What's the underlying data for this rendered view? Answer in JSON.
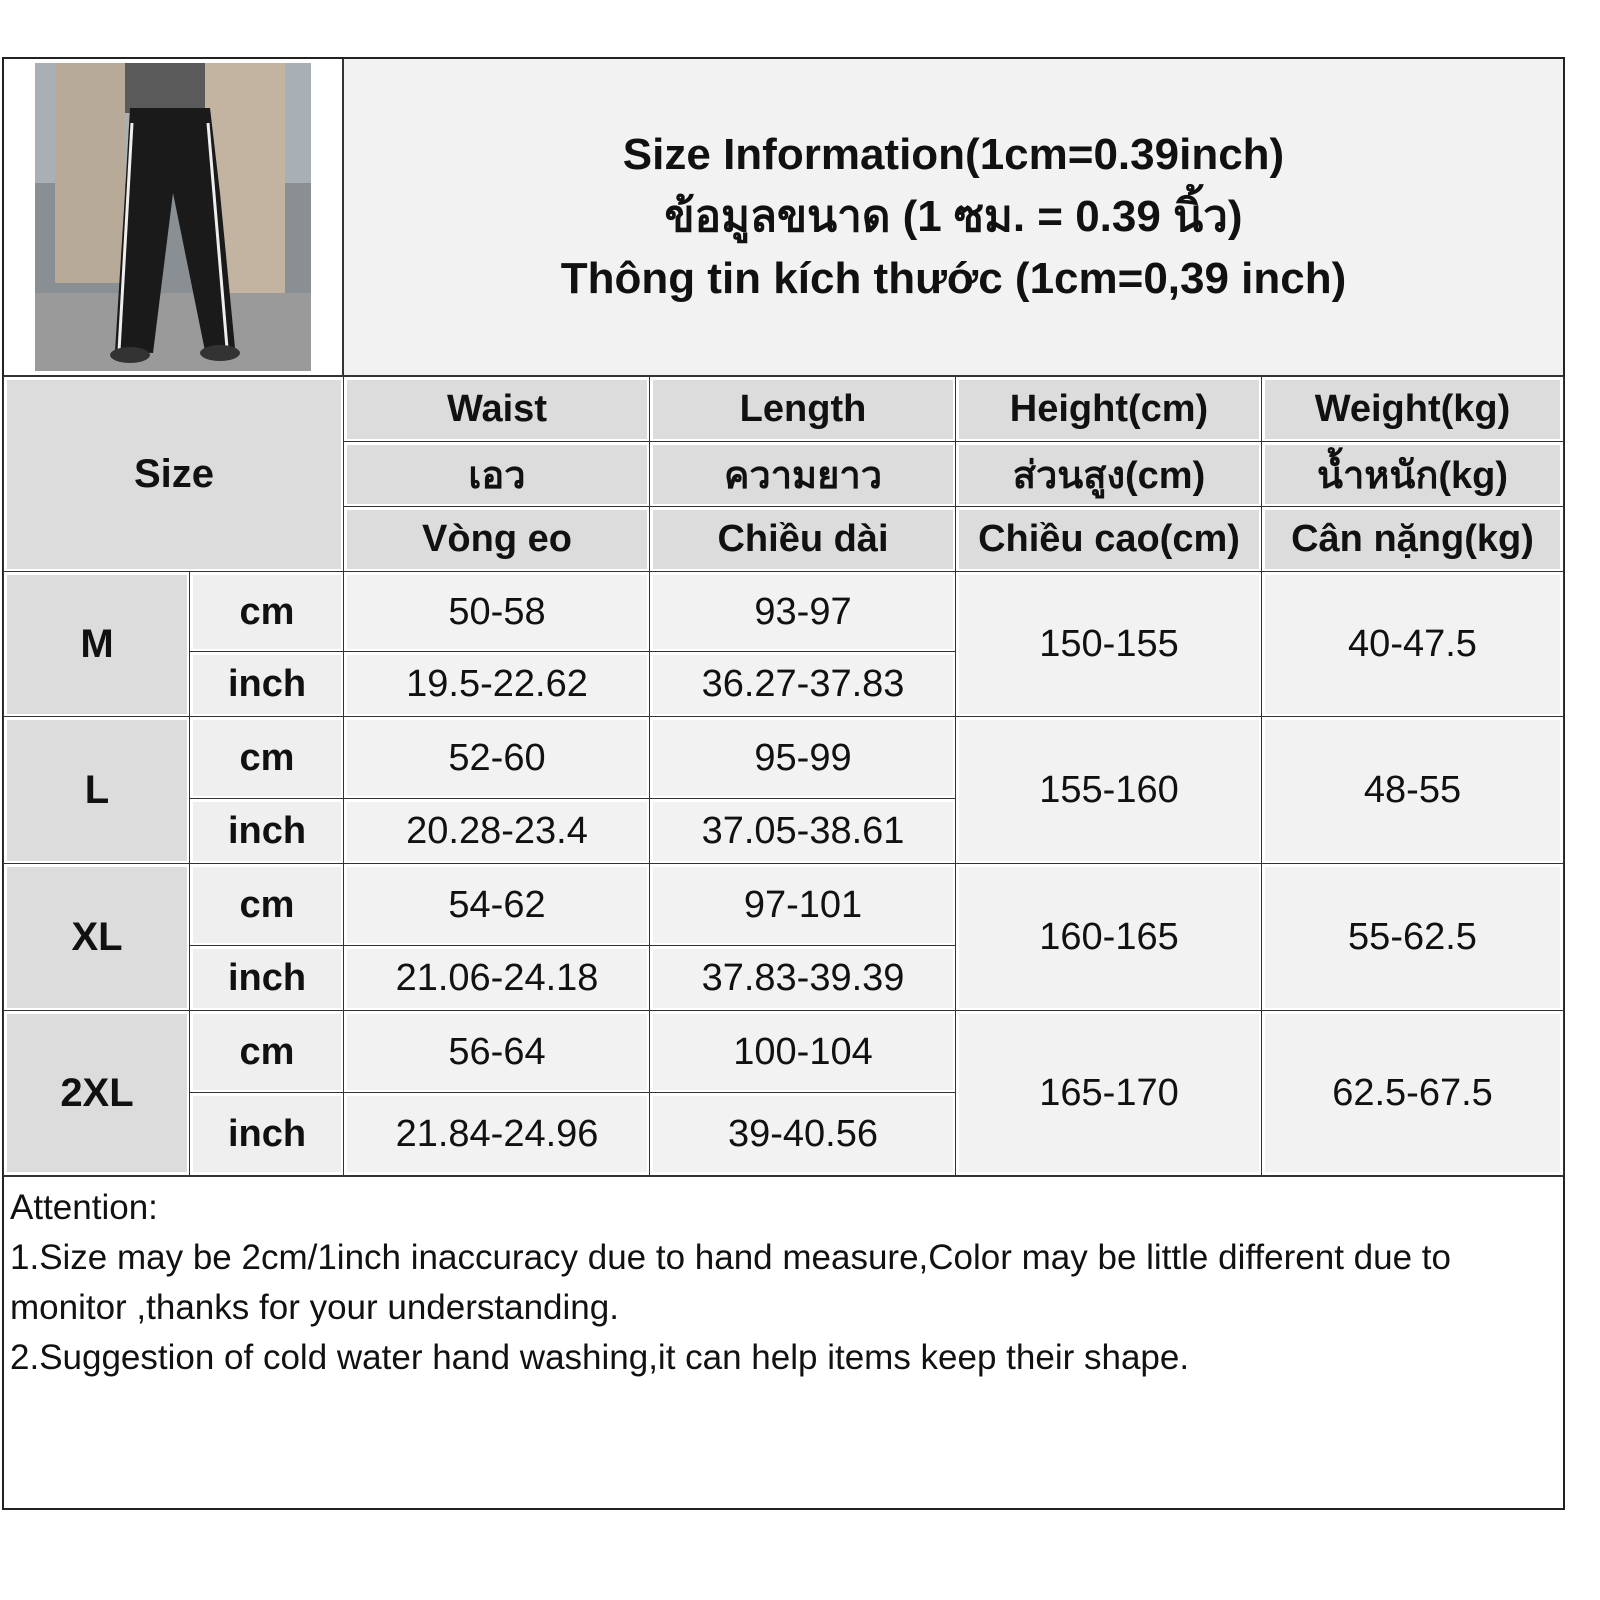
{
  "title": {
    "line1": "Size Information(1cm=0.39inch)",
    "line2": "ข้อมูลขนาด (1 ซม. = 0.39 นิ้ว)",
    "line3": "Thông tin kích thước (1cm=0,39 inch)"
  },
  "header": {
    "size_label": "Size",
    "columns": [
      {
        "en": "Waist",
        "th": "เอว",
        "vi": "Vòng eo"
      },
      {
        "en": "Length",
        "th": "ความยาว",
        "vi": "Chiều dài"
      },
      {
        "en": "Height(cm)",
        "th": "ส่วนสูง(cm)",
        "vi": "Chiều cao(cm)"
      },
      {
        "en": "Weight(kg)",
        "th": "น้ำหนัก(kg)",
        "vi": "Cân nặng(kg)"
      }
    ]
  },
  "units": {
    "cm": "cm",
    "inch": "inch"
  },
  "rows": [
    {
      "size": "M",
      "waist_cm": "50-58",
      "waist_inch": "19.5-22.62",
      "length_cm": "93-97",
      "length_inch": "36.27-37.83",
      "height": "150-155",
      "weight": "40-47.5"
    },
    {
      "size": "L",
      "waist_cm": "52-60",
      "waist_inch": "20.28-23.4",
      "length_cm": "95-99",
      "length_inch": "37.05-38.61",
      "height": "155-160",
      "weight": "48-55"
    },
    {
      "size": "XL",
      "waist_cm": "54-62",
      "waist_inch": "21.06-24.18",
      "length_cm": "97-101",
      "length_inch": "37.83-39.39",
      "height": "160-165",
      "weight": "55-62.5"
    },
    {
      "size": "2XL",
      "waist_cm": "56-64",
      "waist_inch": "21.84-24.96",
      "length_cm": "100-104",
      "length_inch": "39-40.56",
      "height": "165-170",
      "weight": "62.5-67.5"
    }
  ],
  "attention": {
    "heading": "Attention:",
    "notes": [
      "1.Size may be 2cm/1inch inaccuracy due to hand measure,Color may be little different due to monitor ,thanks for your understanding.",
      "2.Suggestion of cold water hand washing,it can help items keep their shape."
    ]
  },
  "colors": {
    "header_bg": "#dcdcdc",
    "cell_bg": "#f2f2f2",
    "border": "#333333"
  }
}
